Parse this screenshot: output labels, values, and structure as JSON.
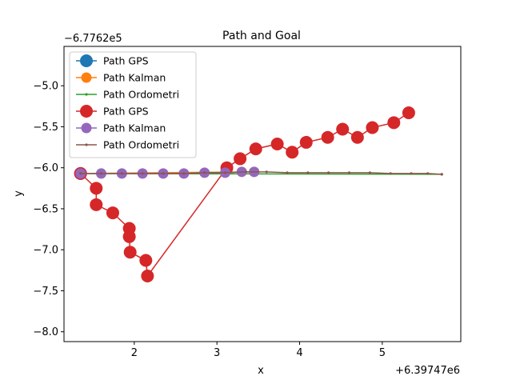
{
  "chart_data": {
    "type": "line",
    "title": "Path and Goal",
    "xlabel": "x",
    "ylabel": "y",
    "x_offset_label": "+6.39747e6",
    "y_offset_label": "−6.7762e5",
    "xlim": [
      1.15,
      5.95
    ],
    "ylim": [
      -8.12,
      -4.52
    ],
    "x_ticks": [
      2,
      3,
      4,
      5
    ],
    "x_tick_labels": [
      "2",
      "3",
      "4",
      "5"
    ],
    "y_ticks": [
      -5.0,
      -5.5,
      -6.0,
      -6.5,
      -7.0,
      -7.5,
      -8.0
    ],
    "y_tick_labels": [
      "−5.0",
      "−5.5",
      "−6.0",
      "−6.5",
      "−7.0",
      "−7.5",
      "−8.0"
    ],
    "grid": false,
    "legend_position": "top-left",
    "series": [
      {
        "name": "Path GPS",
        "color": "#1f77b4",
        "marker": "circle-large",
        "x": [
          1.35
        ],
        "y": [
          -6.07
        ]
      },
      {
        "name": "Path Kalman",
        "color": "#ff7f0e",
        "marker": "circle-medium",
        "x": [
          1.35,
          3.45
        ],
        "y": [
          -6.07,
          -6.05
        ]
      },
      {
        "name": "Path Ordometri",
        "color": "#2ca02c",
        "marker": "dot-small",
        "x": [
          1.35,
          5.72
        ],
        "y": [
          -6.07,
          -6.08
        ]
      },
      {
        "name": "Path GPS",
        "color": "#d62728",
        "marker": "circle-large",
        "x": [
          1.35,
          1.54,
          1.54,
          1.74,
          1.94,
          1.94,
          1.95,
          2.14,
          2.16,
          3.12,
          3.28,
          3.47,
          3.73,
          3.91,
          4.08,
          4.34,
          4.52,
          4.7,
          4.88,
          5.14,
          5.32
        ],
        "y": [
          -6.07,
          -6.25,
          -6.45,
          -6.55,
          -6.74,
          -6.84,
          -7.03,
          -7.13,
          -7.32,
          -6.0,
          -5.89,
          -5.77,
          -5.71,
          -5.81,
          -5.69,
          -5.63,
          -5.53,
          -5.63,
          -5.51,
          -5.45,
          -5.33
        ]
      },
      {
        "name": "Path Kalman",
        "color": "#9467bd",
        "marker": "circle-medium",
        "x": [
          1.35,
          1.6,
          1.85,
          2.1,
          2.35,
          2.6,
          2.85,
          3.1,
          3.3,
          3.45
        ],
        "y": [
          -6.07,
          -6.07,
          -6.07,
          -6.07,
          -6.07,
          -6.07,
          -6.06,
          -6.06,
          -6.05,
          -6.05
        ]
      },
      {
        "name": "Path Ordometri",
        "color": "#8c564b",
        "marker": "dot-small",
        "x": [
          1.35,
          1.6,
          1.85,
          2.1,
          2.35,
          2.6,
          2.85,
          3.1,
          3.35,
          3.6,
          3.85,
          4.1,
          4.35,
          4.6,
          4.85,
          5.1,
          5.35,
          5.55,
          5.72
        ],
        "y": [
          -6.07,
          -6.07,
          -6.07,
          -6.07,
          -6.07,
          -6.07,
          -6.06,
          -6.06,
          -6.05,
          -6.05,
          -6.06,
          -6.06,
          -6.06,
          -6.06,
          -6.06,
          -6.07,
          -6.07,
          -6.07,
          -6.08
        ]
      }
    ]
  }
}
